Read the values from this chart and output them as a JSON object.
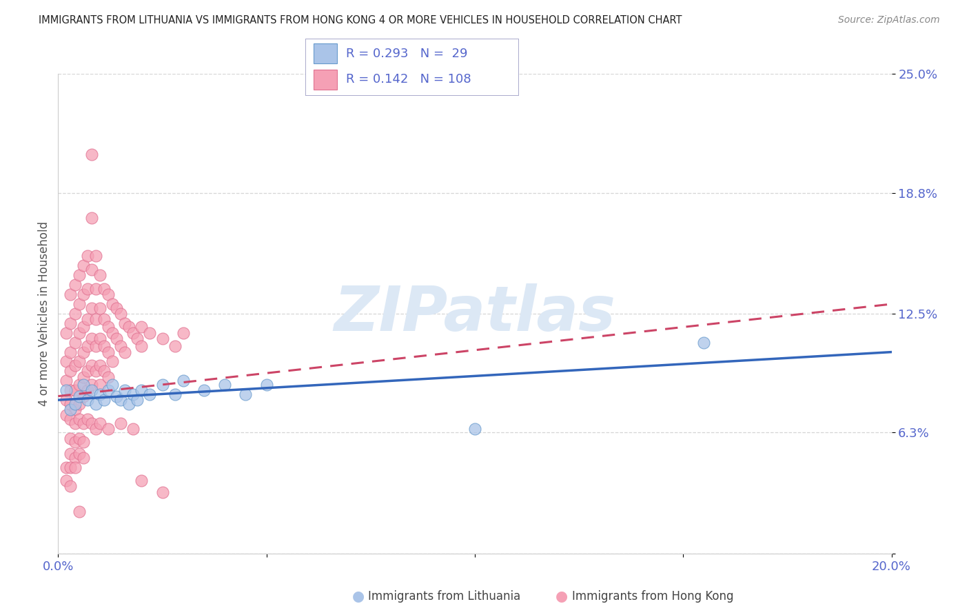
{
  "title": "IMMIGRANTS FROM LITHUANIA VS IMMIGRANTS FROM HONG KONG 4 OR MORE VEHICLES IN HOUSEHOLD CORRELATION CHART",
  "source": "Source: ZipAtlas.com",
  "ylabel": "4 or more Vehicles in Household",
  "xlim": [
    0.0,
    0.2
  ],
  "ylim": [
    0.0,
    0.25
  ],
  "ytick_positions": [
    0.0,
    0.063,
    0.125,
    0.188,
    0.25
  ],
  "ytick_labels": [
    "",
    "6.3%",
    "12.5%",
    "18.8%",
    "25.0%"
  ],
  "xtick_positions": [
    0.0,
    0.05,
    0.1,
    0.15,
    0.2
  ],
  "xtick_labels": [
    "0.0%",
    "",
    "",
    "",
    "20.0%"
  ],
  "lithuania_color": "#aac4e8",
  "hongkong_color": "#f5a0b5",
  "lithuania_edge": "#6699cc",
  "hongkong_edge": "#e07090",
  "lithuania_R": 0.293,
  "lithuania_N": 29,
  "hongkong_R": 0.142,
  "hongkong_N": 108,
  "trend_color_lithuania": "#3366bb",
  "trend_color_hongkong": "#cc4466",
  "axis_label_color": "#5566cc",
  "title_color": "#222222",
  "source_color": "#888888",
  "watermark": "ZIPatlas",
  "background_color": "#ffffff",
  "grid_color": "#cccccc",
  "legend_label_lithuania": "Immigrants from Lithuania",
  "legend_label_hongkong": "Immigrants from Hong Kong",
  "lith_trend_start": 0.08,
  "lith_trend_end": 0.105,
  "hk_trend_start": 0.082,
  "hk_trend_end": 0.13,
  "lithuania_scatter": [
    [
      0.002,
      0.085
    ],
    [
      0.003,
      0.075
    ],
    [
      0.004,
      0.078
    ],
    [
      0.005,
      0.082
    ],
    [
      0.006,
      0.088
    ],
    [
      0.007,
      0.08
    ],
    [
      0.008,
      0.085
    ],
    [
      0.009,
      0.078
    ],
    [
      0.01,
      0.083
    ],
    [
      0.011,
      0.08
    ],
    [
      0.012,
      0.085
    ],
    [
      0.013,
      0.088
    ],
    [
      0.014,
      0.082
    ],
    [
      0.015,
      0.08
    ],
    [
      0.016,
      0.085
    ],
    [
      0.017,
      0.078
    ],
    [
      0.018,
      0.083
    ],
    [
      0.019,
      0.08
    ],
    [
      0.02,
      0.085
    ],
    [
      0.022,
      0.083
    ],
    [
      0.025,
      0.088
    ],
    [
      0.028,
      0.083
    ],
    [
      0.03,
      0.09
    ],
    [
      0.035,
      0.085
    ],
    [
      0.04,
      0.088
    ],
    [
      0.045,
      0.083
    ],
    [
      0.05,
      0.088
    ],
    [
      0.155,
      0.11
    ],
    [
      0.1,
      0.065
    ]
  ],
  "hongkong_scatter": [
    [
      0.002,
      0.115
    ],
    [
      0.002,
      0.1
    ],
    [
      0.002,
      0.09
    ],
    [
      0.002,
      0.08
    ],
    [
      0.003,
      0.135
    ],
    [
      0.003,
      0.12
    ],
    [
      0.003,
      0.105
    ],
    [
      0.003,
      0.095
    ],
    [
      0.003,
      0.085
    ],
    [
      0.003,
      0.078
    ],
    [
      0.004,
      0.14
    ],
    [
      0.004,
      0.125
    ],
    [
      0.004,
      0.11
    ],
    [
      0.004,
      0.098
    ],
    [
      0.004,
      0.085
    ],
    [
      0.004,
      0.075
    ],
    [
      0.005,
      0.145
    ],
    [
      0.005,
      0.13
    ],
    [
      0.005,
      0.115
    ],
    [
      0.005,
      0.1
    ],
    [
      0.005,
      0.088
    ],
    [
      0.005,
      0.078
    ],
    [
      0.006,
      0.15
    ],
    [
      0.006,
      0.135
    ],
    [
      0.006,
      0.118
    ],
    [
      0.006,
      0.105
    ],
    [
      0.006,
      0.092
    ],
    [
      0.006,
      0.082
    ],
    [
      0.007,
      0.155
    ],
    [
      0.007,
      0.138
    ],
    [
      0.007,
      0.122
    ],
    [
      0.007,
      0.108
    ],
    [
      0.007,
      0.095
    ],
    [
      0.007,
      0.085
    ],
    [
      0.008,
      0.175
    ],
    [
      0.008,
      0.148
    ],
    [
      0.008,
      0.128
    ],
    [
      0.008,
      0.112
    ],
    [
      0.008,
      0.098
    ],
    [
      0.008,
      0.088
    ],
    [
      0.009,
      0.155
    ],
    [
      0.009,
      0.138
    ],
    [
      0.009,
      0.122
    ],
    [
      0.009,
      0.108
    ],
    [
      0.009,
      0.095
    ],
    [
      0.01,
      0.145
    ],
    [
      0.01,
      0.128
    ],
    [
      0.01,
      0.112
    ],
    [
      0.01,
      0.098
    ],
    [
      0.01,
      0.088
    ],
    [
      0.011,
      0.138
    ],
    [
      0.011,
      0.122
    ],
    [
      0.011,
      0.108
    ],
    [
      0.011,
      0.095
    ],
    [
      0.012,
      0.135
    ],
    [
      0.012,
      0.118
    ],
    [
      0.012,
      0.105
    ],
    [
      0.012,
      0.092
    ],
    [
      0.013,
      0.13
    ],
    [
      0.013,
      0.115
    ],
    [
      0.013,
      0.1
    ],
    [
      0.014,
      0.128
    ],
    [
      0.014,
      0.112
    ],
    [
      0.015,
      0.125
    ],
    [
      0.015,
      0.108
    ],
    [
      0.016,
      0.12
    ],
    [
      0.016,
      0.105
    ],
    [
      0.017,
      0.118
    ],
    [
      0.018,
      0.115
    ],
    [
      0.019,
      0.112
    ],
    [
      0.02,
      0.118
    ],
    [
      0.02,
      0.108
    ],
    [
      0.022,
      0.115
    ],
    [
      0.025,
      0.112
    ],
    [
      0.028,
      0.108
    ],
    [
      0.03,
      0.115
    ],
    [
      0.002,
      0.072
    ],
    [
      0.003,
      0.07
    ],
    [
      0.004,
      0.068
    ],
    [
      0.005,
      0.07
    ],
    [
      0.006,
      0.068
    ],
    [
      0.007,
      0.07
    ],
    [
      0.008,
      0.068
    ],
    [
      0.009,
      0.065
    ],
    [
      0.01,
      0.068
    ],
    [
      0.012,
      0.065
    ],
    [
      0.015,
      0.068
    ],
    [
      0.018,
      0.065
    ],
    [
      0.003,
      0.06
    ],
    [
      0.004,
      0.058
    ],
    [
      0.005,
      0.06
    ],
    [
      0.006,
      0.058
    ],
    [
      0.003,
      0.052
    ],
    [
      0.004,
      0.05
    ],
    [
      0.005,
      0.052
    ],
    [
      0.006,
      0.05
    ],
    [
      0.002,
      0.045
    ],
    [
      0.003,
      0.045
    ],
    [
      0.004,
      0.045
    ],
    [
      0.002,
      0.038
    ],
    [
      0.003,
      0.035
    ],
    [
      0.02,
      0.038
    ],
    [
      0.025,
      0.032
    ],
    [
      0.005,
      0.022
    ],
    [
      0.008,
      0.208
    ]
  ]
}
